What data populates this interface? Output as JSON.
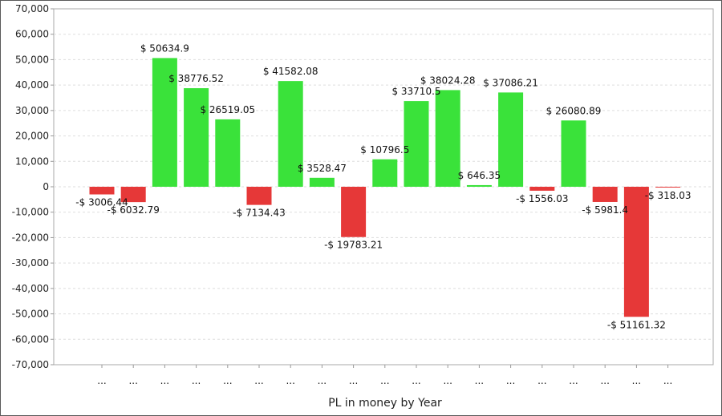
{
  "chart_data": {
    "type": "bar",
    "title": "",
    "xlabel": "PL in money by Year",
    "ylabel": "",
    "ylim": [
      -70000,
      70000
    ],
    "yticks": [
      70000,
      60000,
      50000,
      40000,
      30000,
      20000,
      10000,
      0,
      -10000,
      -20000,
      -30000,
      -40000,
      -50000,
      -60000,
      -70000
    ],
    "ytick_labels": [
      "70,000",
      "60,000",
      "50,000",
      "40,000",
      "30,000",
      "20,000",
      "10,000",
      "0",
      "-10,000",
      "-20,000",
      "-30,000",
      "-40,000",
      "-50,000",
      "-60,000",
      "-70,000"
    ],
    "grid": true,
    "legend": "none",
    "categories": [
      "...",
      "...",
      "...",
      "...",
      "...",
      "...",
      "...",
      "...",
      "...",
      "...",
      "...",
      "...",
      "...",
      "...",
      "...",
      "...",
      "...",
      "...",
      "..."
    ],
    "values": [
      -3006.44,
      -6032.79,
      50634.9,
      38776.52,
      26519.05,
      -7134.43,
      41582.08,
      3528.47,
      -19783.21,
      10796.5,
      33710.5,
      38024.28,
      646.35,
      37086.21,
      -1556.03,
      26080.89,
      -5981.4,
      -51161.32,
      -318.03
    ],
    "data_labels": [
      "-$ 3006.44",
      "-$ 6032.79",
      "$ 50634.9",
      "$ 38776.52",
      "$ 26519.05",
      "-$ 7134.43",
      "$ 41582.08",
      "$ 3528.47",
      "-$ 19783.21",
      "$ 10796.5",
      "$ 33710.5",
      "$ 38024.28",
      "$ 646.35",
      "$ 37086.21",
      "-$ 1556.03",
      "$ 26080.89",
      "-$ 5981.4",
      "-$ 51161.32",
      "-$ 318.03"
    ],
    "colors": {
      "positive": "#3ae23a",
      "negative": "#e63838",
      "grid": "#dddddd",
      "axis": "#999999"
    }
  }
}
